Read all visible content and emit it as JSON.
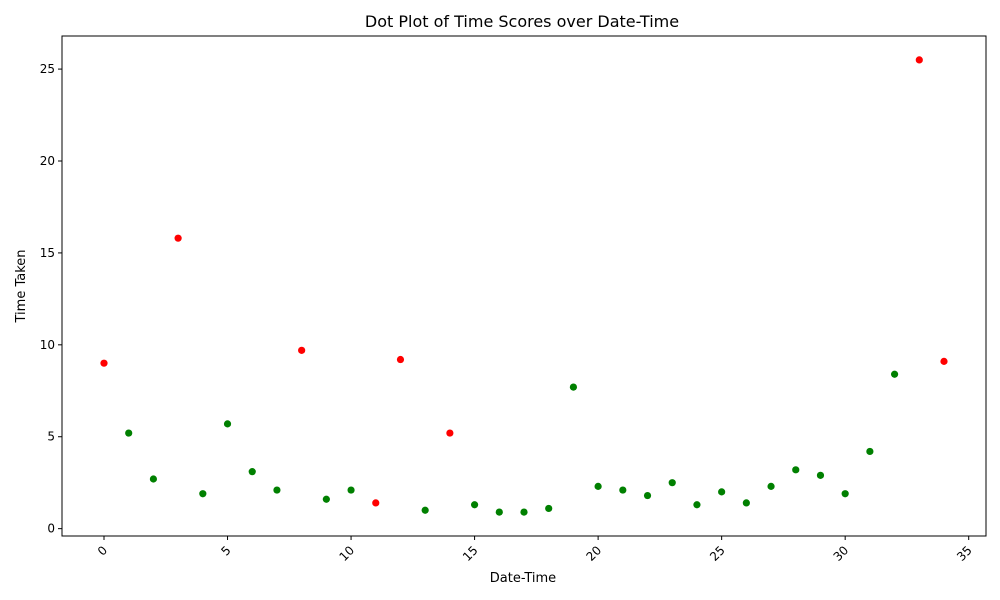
{
  "chart_data": {
    "type": "scatter",
    "title": "Dot Plot of Time Scores over Date-Time",
    "xlabel": "Date-Time",
    "ylabel": "Time Taken",
    "xlim": [
      -1.7,
      35.7
    ],
    "ylim": [
      -0.4,
      26.8
    ],
    "xticks": [
      0,
      5,
      10,
      15,
      20,
      25,
      30,
      35
    ],
    "yticks": [
      0,
      5,
      10,
      15,
      20,
      25
    ],
    "xtick_rotation": 45,
    "grid": false,
    "legend": false,
    "colors": {
      "red": "#ff0000",
      "green": "#008000"
    },
    "points": [
      {
        "x": 0,
        "y": 9.0,
        "color": "red"
      },
      {
        "x": 1,
        "y": 5.2,
        "color": "green"
      },
      {
        "x": 2,
        "y": 2.7,
        "color": "green"
      },
      {
        "x": 3,
        "y": 15.8,
        "color": "red"
      },
      {
        "x": 4,
        "y": 1.9,
        "color": "green"
      },
      {
        "x": 5,
        "y": 5.7,
        "color": "green"
      },
      {
        "x": 6,
        "y": 3.1,
        "color": "green"
      },
      {
        "x": 7,
        "y": 2.1,
        "color": "green"
      },
      {
        "x": 8,
        "y": 9.7,
        "color": "red"
      },
      {
        "x": 9,
        "y": 1.6,
        "color": "green"
      },
      {
        "x": 10,
        "y": 2.1,
        "color": "green"
      },
      {
        "x": 11,
        "y": 1.4,
        "color": "red"
      },
      {
        "x": 12,
        "y": 9.2,
        "color": "red"
      },
      {
        "x": 13,
        "y": 1.0,
        "color": "green"
      },
      {
        "x": 14,
        "y": 5.2,
        "color": "red"
      },
      {
        "x": 15,
        "y": 1.3,
        "color": "green"
      },
      {
        "x": 16,
        "y": 0.9,
        "color": "green"
      },
      {
        "x": 17,
        "y": 0.9,
        "color": "green"
      },
      {
        "x": 18,
        "y": 1.1,
        "color": "green"
      },
      {
        "x": 19,
        "y": 7.7,
        "color": "green"
      },
      {
        "x": 20,
        "y": 2.3,
        "color": "green"
      },
      {
        "x": 21,
        "y": 2.1,
        "color": "green"
      },
      {
        "x": 22,
        "y": 1.8,
        "color": "green"
      },
      {
        "x": 23,
        "y": 2.5,
        "color": "green"
      },
      {
        "x": 24,
        "y": 1.3,
        "color": "green"
      },
      {
        "x": 25,
        "y": 2.0,
        "color": "green"
      },
      {
        "x": 26,
        "y": 1.4,
        "color": "green"
      },
      {
        "x": 27,
        "y": 2.3,
        "color": "green"
      },
      {
        "x": 28,
        "y": 3.2,
        "color": "green"
      },
      {
        "x": 29,
        "y": 2.9,
        "color": "green"
      },
      {
        "x": 30,
        "y": 1.9,
        "color": "green"
      },
      {
        "x": 31,
        "y": 4.2,
        "color": "green"
      },
      {
        "x": 32,
        "y": 8.4,
        "color": "green"
      },
      {
        "x": 33,
        "y": 25.5,
        "color": "red"
      },
      {
        "x": 34,
        "y": 9.1,
        "color": "red"
      }
    ]
  }
}
